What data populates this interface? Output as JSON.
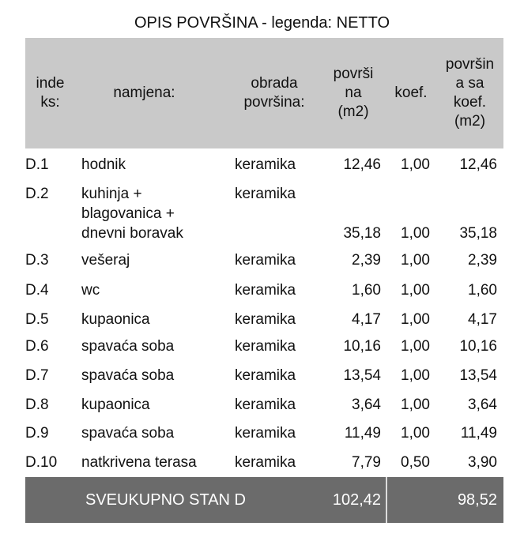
{
  "title": "OPIS POVRŠINA - legenda: NETTO",
  "headers": [
    "inde\nks:",
    "namjena:",
    "obrada\npovršina:",
    "površi\nna\n(m2)",
    "koef.",
    "površin\na sa\nkoef.\n(m2)"
  ],
  "rows": [
    {
      "idx": "D.1",
      "name": "hodnik",
      "finish": "keramika",
      "area": "12,46",
      "coef": "1,00",
      "area_coef": "12,46"
    },
    {
      "idx": "D.2",
      "name": "kuhinja +\nblagovanica +\ndnevni boravak",
      "finish": "keramika",
      "area": "35,18",
      "coef": "1,00",
      "area_coef": "35,18"
    },
    {
      "idx": "D.3",
      "name": "vešeraj",
      "finish": "keramika",
      "area": "2,39",
      "coef": "1,00",
      "area_coef": "2,39"
    },
    {
      "idx": "D.4",
      "name": "wc",
      "finish": "keramika",
      "area": "1,60",
      "coef": "1,00",
      "area_coef": "1,60"
    },
    {
      "idx": "D.5",
      "name": "kupaonica",
      "finish": "keramika",
      "area": "4,17",
      "coef": "1,00",
      "area_coef": "4,17"
    },
    {
      "idx": "D.6",
      "name": "spavaća soba",
      "finish": "keramika",
      "area": "10,16",
      "coef": "1,00",
      "area_coef": "10,16"
    },
    {
      "idx": "D.7",
      "name": "spavaća soba",
      "finish": "keramika",
      "area": "13,54",
      "coef": "1,00",
      "area_coef": "13,54"
    },
    {
      "idx": "D.8",
      "name": "kupaonica",
      "finish": "keramika",
      "area": "3,64",
      "coef": "1,00",
      "area_coef": "3,64"
    },
    {
      "idx": "D.9",
      "name": "spavaća soba",
      "finish": "keramika",
      "area": "11,49",
      "coef": "1,00",
      "area_coef": "11,49"
    },
    {
      "idx": "D.10",
      "name": "natkrivena terasa",
      "finish": "keramika",
      "area": "7,79",
      "coef": "0,50",
      "area_coef": "3,90"
    }
  ],
  "total": {
    "label": "SVEUKUPNO STAN D",
    "area": "102,42",
    "area_coef": "98,52"
  },
  "colors": {
    "header_bg": "#c9c9c9",
    "footer_bg": "#6b6b6b"
  }
}
